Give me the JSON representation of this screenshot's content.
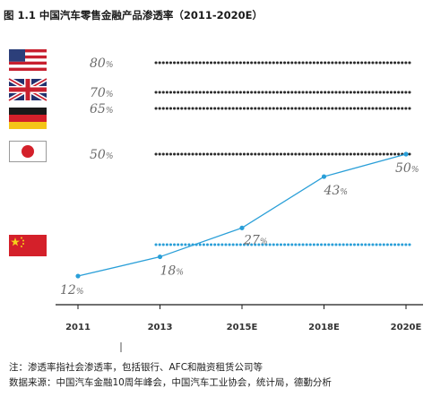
{
  "title": "图 1.1 中国汽车零售金融产品渗透率（2011-2020E）",
  "reference_lines": [
    {
      "country": "United States",
      "flag": "us-flag",
      "value": 80
    },
    {
      "country": "United Kingdom",
      "flag": "uk-flag",
      "value": 70
    },
    {
      "country": "Germany",
      "flag": "de-flag",
      "value": 65
    },
    {
      "country": "Japan",
      "flag": "jp-flag",
      "value": 50
    }
  ],
  "china_flag": "cn-flag",
  "unit": "%",
  "colors": {
    "line": "#2a9fd8",
    "reference": "#2b2b2b",
    "china_reference": "#2a9fd8",
    "label": "#6b6b6b"
  },
  "chart_data": {
    "type": "line",
    "x": [
      "2011",
      "2013",
      "2015E",
      "2018E",
      "2020E"
    ],
    "series": [
      {
        "values": [
          12,
          18,
          27,
          43,
          50
        ]
      }
    ],
    "ylim": [
      0,
      90
    ],
    "grid": false
  },
  "note": "注：渗透率指社会渗透率，包括银行、AFC和融资租赁公司等",
  "source": "数据来源：中国汽车金融10周年峰会，中国汽车工业协会，统计局，德勤分析"
}
